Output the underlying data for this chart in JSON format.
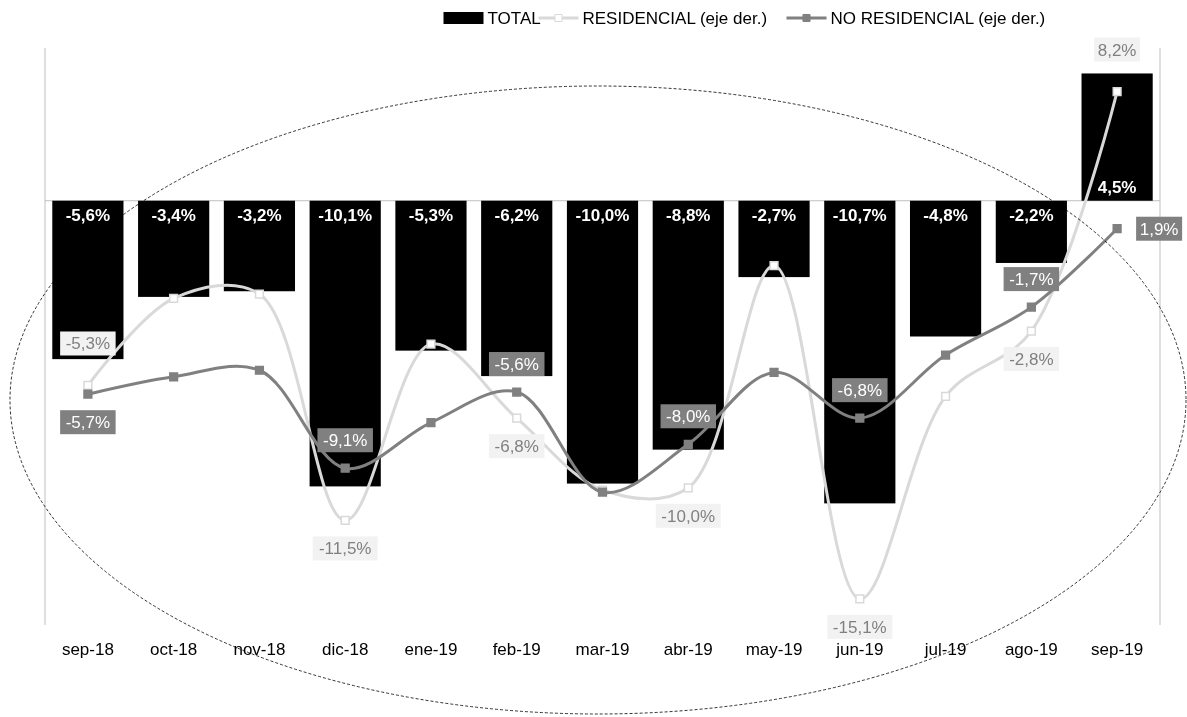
{
  "chart_data": {
    "type": "bar",
    "categories": [
      "sep-18",
      "oct-18",
      "nov-18",
      "dic-18",
      "ene-19",
      "feb-19",
      "mar-19",
      "abr-19",
      "may-19",
      "jun-19",
      "jul-19",
      "ago-19",
      "sep-19"
    ],
    "series": [
      {
        "name": "TOTAL",
        "color": "#000000",
        "values": [
          -5.6,
          -3.4,
          -3.2,
          -10.1,
          -5.3,
          -6.2,
          -10.0,
          -8.8,
          -2.7,
          -10.7,
          -4.8,
          -2.2,
          4.5
        ],
        "value_labels": [
          "-5,6%",
          "-3,4%",
          "-3,2%",
          "-10,1%",
          "-5,3%",
          "-6,2%",
          "-10,0%",
          "-8,8%",
          "-2,7%",
          "-10,7%",
          "-4,8%",
          "-2,2%",
          "4,5%"
        ]
      },
      {
        "name": "RESIDENCIAL (eje der.)",
        "type": "line",
        "axis": "y2",
        "color": "#d9d9d9",
        "values": [
          -5.3,
          -1.3,
          -1.1,
          -11.5,
          -3.4,
          -6.8,
          -10.1,
          -10.0,
          0.2,
          -15.1,
          -5.8,
          -2.8,
          8.2
        ],
        "value_labels": [
          "-5,3%",
          null,
          null,
          "-11,5%",
          null,
          "-6,8%",
          null,
          "-10,0%",
          null,
          "-15,1%",
          null,
          "-2,8%",
          "8,2%"
        ]
      },
      {
        "name": "NO RESIDENCIAL (eje der.)",
        "type": "line",
        "axis": "y2",
        "color": "#808080",
        "values": [
          -5.7,
          -4.9,
          -4.6,
          -9.1,
          -7.0,
          -5.6,
          -10.2,
          -8.0,
          -4.7,
          -6.8,
          -3.9,
          -1.7,
          1.9
        ],
        "value_labels": [
          "-5,7%",
          null,
          null,
          "-9,1%",
          null,
          "-5,6%",
          null,
          "-8,0%",
          null,
          "-6,8%",
          null,
          "-1,7%",
          "1,9%"
        ]
      }
    ],
    "ylim": [
      -15,
      5.4
    ],
    "y2lim": [
      -16.3,
      10.2
    ],
    "tick_labels": "x",
    "marker": "square",
    "legend": "top"
  }
}
